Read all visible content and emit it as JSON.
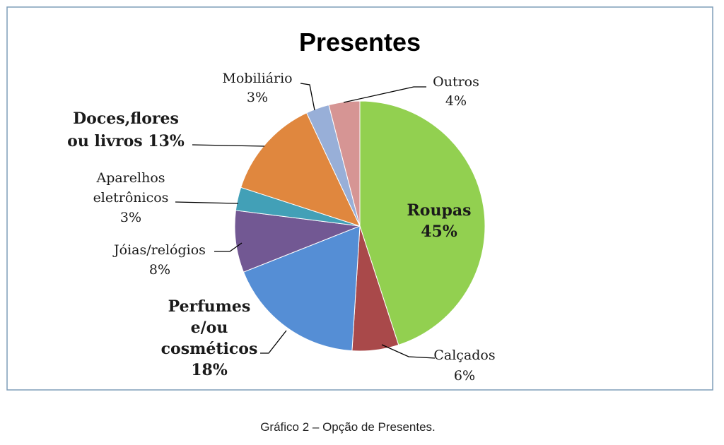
{
  "chart_data": {
    "type": "pie",
    "title": "Presentes",
    "start": "top",
    "direction": "clockwise",
    "slices": [
      {
        "name": "Roupas",
        "value": 45,
        "color": "#92D050",
        "label": [
          "Roupas",
          "45%"
        ],
        "bold": true
      },
      {
        "name": "Calçados",
        "value": 6,
        "color": "#A9494A",
        "label": [
          "Calçados",
          "6%"
        ],
        "bold": false
      },
      {
        "name": "Perfumes e/ou cosméticos",
        "value": 18,
        "color": "#558ED5",
        "label": [
          "Perfumes",
          "e/ou",
          "cosméticos",
          "18%"
        ],
        "bold": true
      },
      {
        "name": "Jóias/relógios",
        "value": 8,
        "color": "#725893",
        "label": [
          "Jóias/relógios",
          "8%"
        ],
        "bold": false
      },
      {
        "name": "Aparelhos eletrônicos",
        "value": 3,
        "color": "#42A0B7",
        "label": [
          "Aparelhos",
          "eletrônicos",
          "3%"
        ],
        "bold": false
      },
      {
        "name": "Doces,flores ou livros",
        "value": 13,
        "color": "#E0873E",
        "label": [
          "Doces,flores",
          "ou livros 13%"
        ],
        "bold": true
      },
      {
        "name": "Mobiliário",
        "value": 3,
        "color": "#98AFD8",
        "label": [
          "Mobiliário",
          "3%"
        ],
        "bold": false
      },
      {
        "name": "Outros",
        "value": 4,
        "color": "#D69594",
        "label": [
          "Outros",
          "4%"
        ],
        "bold": false
      }
    ]
  },
  "caption": "Gráfico 2  – Opção de Presentes.",
  "frame_color": "#7F9DB9"
}
